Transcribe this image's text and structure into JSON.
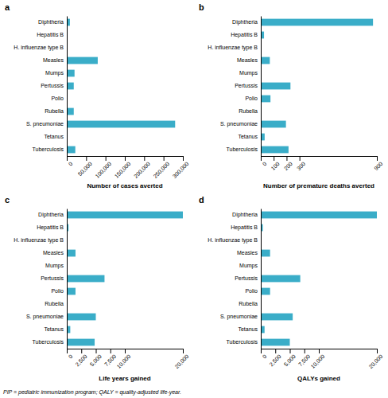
{
  "chart_data": [
    {
      "type": "bar",
      "orientation": "horizontal",
      "title": "a",
      "categories": [
        "Diphtheria",
        "Hepatitis B",
        "H. influenzae type B",
        "Measles",
        "Mumps",
        "Pertussis",
        "Polio",
        "Rubella",
        "S. pneumoniae",
        "Tetanus",
        "Tuberculosis"
      ],
      "values": [
        8000,
        200,
        100,
        80000,
        20000,
        18000,
        200,
        18000,
        280000,
        200,
        22000
      ],
      "color": "#3AADC8",
      "xlabel": "Number of cases averted",
      "xlim": [
        0,
        300000
      ],
      "xticks": [
        0,
        {
          "value": 50000,
          "label": "50,000"
        },
        {
          "value": 100000,
          "label": "100,000"
        },
        {
          "value": 150000,
          "label": "150,000"
        },
        {
          "value": 200000,
          "label": "200,000"
        },
        {
          "value": 250000,
          "label": "250,000"
        },
        {
          "value": 300000,
          "label": "300,000"
        }
      ]
    },
    {
      "type": "bar",
      "orientation": "horizontal",
      "title": "b",
      "categories": [
        "Diphtheria",
        "Hepatitis B",
        "H. influenzae type B",
        "Measles",
        "Mumps",
        "Pertussis",
        "Polio",
        "Rubella",
        "S. pneumoniae",
        "Tetanus",
        "Tuberculosis"
      ],
      "values": [
        870,
        25,
        2,
        70,
        1,
        230,
        75,
        5,
        195,
        30,
        215
      ],
      "color": "#3AADC8",
      "xlabel": "Number of premature deaths averted",
      "xlim": [
        0,
        900
      ],
      "xticks": [
        0,
        100,
        200,
        300,
        900
      ]
    },
    {
      "type": "bar",
      "orientation": "horizontal",
      "title": "c",
      "categories": [
        "Diphtheria",
        "Hepatitis B",
        "H. influenzae type B",
        "Measles",
        "Mumps",
        "Pertussis",
        "Polio",
        "Rubella",
        "S. pneumoniae",
        "Tetanus",
        "Tuberculosis"
      ],
      "values": [
        20000,
        300,
        50,
        1500,
        30,
        6500,
        1500,
        100,
        5000,
        600,
        4800
      ],
      "color": "#3AADC8",
      "xlabel": "Life years gained",
      "xlim": [
        0,
        20000
      ],
      "xticks": [
        0,
        {
          "value": 2500,
          "label": "2,500"
        },
        {
          "value": 5000,
          "label": "5,000"
        },
        {
          "value": 7500,
          "label": "7,500"
        },
        {
          "value": 10000,
          "label": "10,000"
        },
        {
          "value": 20000,
          "label": "20,000"
        }
      ]
    },
    {
      "type": "bar",
      "orientation": "horizontal",
      "title": "d",
      "categories": [
        "Diphtheria",
        "Hepatitis B",
        "H. influenzae type B",
        "Measles",
        "Mumps",
        "Pertussis",
        "Polio",
        "Rubella",
        "S. pneumoniae",
        "Tetanus",
        "Tuberculosis"
      ],
      "values": [
        20000,
        350,
        60,
        1600,
        40,
        6800,
        1600,
        120,
        5500,
        650,
        5000
      ],
      "color": "#3AADC8",
      "xlabel": "QALYs gained",
      "xlim": [
        0,
        20000
      ],
      "xticks": [
        0,
        {
          "value": 2500,
          "label": "2,500"
        },
        {
          "value": 5000,
          "label": "5,000"
        },
        {
          "value": 7500,
          "label": "7,500"
        },
        {
          "value": 10000,
          "label": "10,000"
        },
        {
          "value": 20000,
          "label": "20,000"
        }
      ]
    }
  ],
  "footnote": "PIP = pediatric immunization program; QALY = quality-adjusted life-year."
}
